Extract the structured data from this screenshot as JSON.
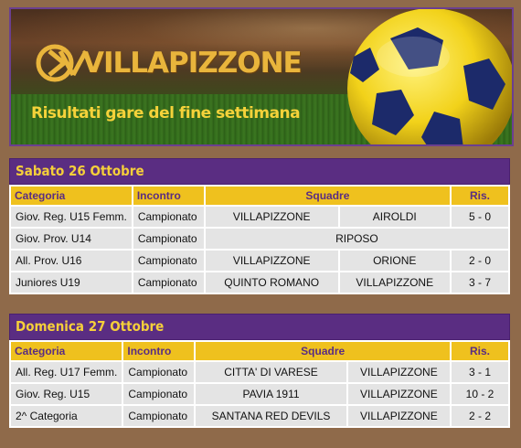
{
  "banner": {
    "logo_text": "VILLAPIZZONE",
    "subtitle": "Risultati gare del fine settimana"
  },
  "colors": {
    "purple": "#5a2d82",
    "gold": "#efc11e",
    "row_grey": "#e4e4e4"
  },
  "headers": {
    "categoria": "Categoria",
    "incontro": "Incontro",
    "squadre": "Squadre",
    "ris": "Ris."
  },
  "saturday": {
    "title": "Sabato 26 Ottobre",
    "rows": [
      {
        "categoria": "Giov. Reg. U15 Femm.",
        "incontro": "Campionato",
        "casa": "VILLAPIZZONE",
        "ospite": "AIROLDI",
        "risultato": "5 - 0"
      },
      {
        "categoria": "Giov. Prov. U14",
        "incontro": "Campionato",
        "note": "RIPOSO"
      },
      {
        "categoria": "All. Prov. U16",
        "incontro": "Campionato",
        "casa": "VILLAPIZZONE",
        "ospite": "ORIONE",
        "risultato": "2 - 0"
      },
      {
        "categoria": "Juniores U19",
        "incontro": "Campionato",
        "casa": "QUINTO ROMANO",
        "ospite": "VILLAPIZZONE",
        "risultato": "3 - 7"
      }
    ]
  },
  "sunday": {
    "title": "Domenica 27 Ottobre",
    "rows": [
      {
        "categoria": "All. Reg. U17 Femm.",
        "incontro": "Campionato",
        "casa": "CITTA' DI VARESE",
        "ospite": "VILLAPIZZONE",
        "risultato": "3 - 1"
      },
      {
        "categoria": "Giov. Reg. U15",
        "incontro": "Campionato",
        "casa": "PAVIA 1911",
        "ospite": "VILLAPIZZONE",
        "risultato": "10 - 2"
      },
      {
        "categoria": "2^ Categoria",
        "incontro": "Campionato",
        "casa": "SANTANA RED DEVILS",
        "ospite": "VILLAPIZZONE",
        "risultato": "2 - 2"
      }
    ]
  }
}
